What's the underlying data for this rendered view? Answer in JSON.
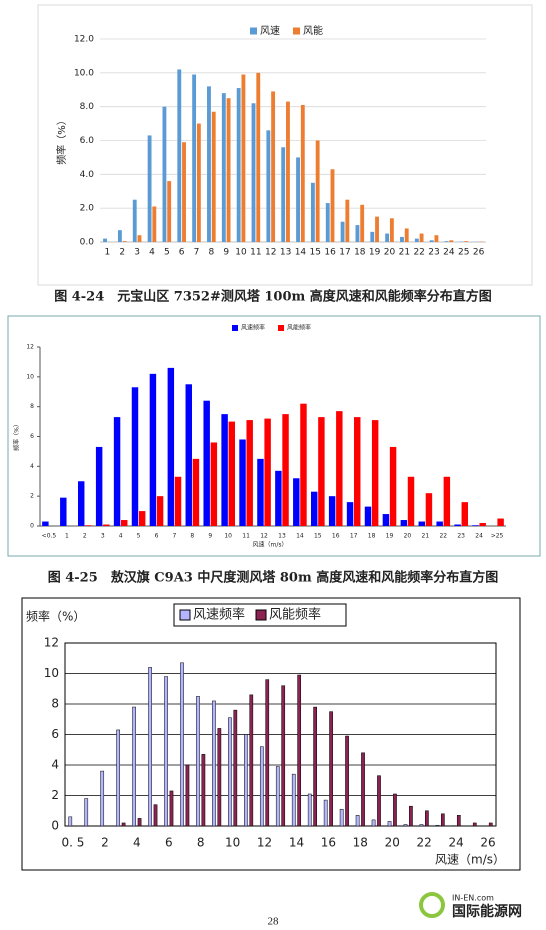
{
  "chart_data": [
    {
      "type": "bar",
      "caption": "图 4-24　元宝山区 7352#测风塔 100m 高度风速和风能频率分布直方图",
      "y_label": "频率（%）",
      "grid": true,
      "categories": [
        "1",
        "2",
        "3",
        "4",
        "5",
        "6",
        "7",
        "8",
        "9",
        "10",
        "11",
        "12",
        "13",
        "14",
        "15",
        "16",
        "17",
        "18",
        "19",
        "20",
        "21",
        "22",
        "23",
        "24",
        "25",
        "26"
      ],
      "series": [
        {
          "name": "风速",
          "color": "#5b9bd5",
          "values": [
            0.2,
            0.7,
            2.5,
            6.3,
            8.0,
            10.2,
            9.9,
            9.2,
            8.8,
            9.1,
            8.2,
            6.6,
            5.6,
            5.0,
            3.5,
            2.3,
            1.2,
            1.0,
            0.6,
            0.5,
            0.3,
            0.2,
            0.1,
            0.05,
            0.02,
            0.01
          ]
        },
        {
          "name": "风能",
          "color": "#ed7d31",
          "values": [
            0,
            0.05,
            0.4,
            2.1,
            3.6,
            5.9,
            7.0,
            7.7,
            8.5,
            9.9,
            10.0,
            8.9,
            8.3,
            8.1,
            6.0,
            4.3,
            2.5,
            2.2,
            1.5,
            1.4,
            0.8,
            0.5,
            0.4,
            0.1,
            0.05,
            0.02
          ]
        }
      ],
      "ylim": [
        0,
        12
      ],
      "yticks": [
        {
          "value": 0,
          "label": "0.0"
        },
        {
          "value": 2,
          "label": "2.0"
        },
        {
          "value": 4,
          "label": "4.0"
        },
        {
          "value": 6,
          "label": "6.0"
        },
        {
          "value": 8,
          "label": "8.0"
        },
        {
          "value": 10,
          "label": "10.0"
        },
        {
          "value": 12,
          "label": "12.0"
        }
      ]
    },
    {
      "type": "bar",
      "caption": "图 4-25　敖汉旗 C9A3 中尺度测风塔 80m 高度风速和风能频率分布直方图",
      "y_label": "频率（%）",
      "x_label": "风速（m/s）",
      "grid": false,
      "categories": [
        "<0.5",
        "1",
        "2",
        "3",
        "4",
        "5",
        "6",
        "7",
        "8",
        "9",
        "10",
        "11",
        "12",
        "13",
        "14",
        "15",
        "16",
        "17",
        "18",
        "19",
        "20",
        "21",
        "22",
        "23",
        "24",
        ">25"
      ],
      "series": [
        {
          "name": "风速频率",
          "color": "#0000ff",
          "values": [
            0.3,
            1.9,
            3.0,
            5.3,
            7.3,
            9.3,
            10.2,
            10.6,
            9.5,
            8.4,
            7.5,
            5.8,
            4.5,
            3.7,
            3.2,
            2.3,
            2.0,
            1.6,
            1.3,
            0.8,
            0.4,
            0.3,
            0.3,
            0.1,
            0.05,
            0
          ]
        },
        {
          "name": "风能频率",
          "color": "#ff0000",
          "values": [
            0,
            0,
            0.05,
            0.1,
            0.4,
            1.0,
            2.0,
            3.3,
            4.5,
            5.6,
            7.0,
            7.1,
            7.2,
            7.5,
            8.2,
            7.3,
            7.7,
            7.3,
            7.1,
            5.3,
            3.3,
            2.2,
            3.3,
            1.6,
            0.2,
            0.5
          ]
        }
      ],
      "ylim": [
        0,
        12
      ],
      "yticks": [
        0,
        2,
        4,
        6,
        8,
        10,
        12
      ]
    },
    {
      "type": "bar",
      "y_label": "频率（%）",
      "x_label": "风速（m/s）",
      "grid": true,
      "categories": [
        "0. 5",
        null,
        "2",
        null,
        "4",
        null,
        "6",
        null,
        "8",
        null,
        "10",
        null,
        "12",
        null,
        "14",
        null,
        "16",
        null,
        "18",
        null,
        "20",
        null,
        "22",
        null,
        "24",
        null,
        "26"
      ],
      "series": [
        {
          "name": "风速频率",
          "color": "#b4b4ff",
          "values": [
            0.6,
            1.8,
            3.6,
            6.3,
            7.8,
            10.4,
            9.8,
            10.7,
            8.5,
            8.2,
            7.1,
            6.0,
            5.2,
            3.9,
            3.4,
            2.1,
            1.7,
            1.1,
            0.7,
            0.4,
            0.3,
            0.1,
            0.1,
            0.05,
            0.02,
            0.01,
            0.01
          ]
        },
        {
          "name": "风能频率",
          "color": "#8b2252",
          "values": [
            0,
            0,
            0,
            0.2,
            0.5,
            1.4,
            2.3,
            4.0,
            4.7,
            6.4,
            7.6,
            8.6,
            9.6,
            9.2,
            9.9,
            7.8,
            7.5,
            5.9,
            4.8,
            3.3,
            2.1,
            1.3,
            1.0,
            0.8,
            0.7,
            0.2,
            0.2
          ]
        }
      ],
      "ylim": [
        0,
        12
      ],
      "yticks": [
        0,
        2,
        4,
        6,
        8,
        10,
        12
      ]
    }
  ],
  "page_number": "28",
  "watermark": {
    "site": "IN-EN.com",
    "name": "国际能源网"
  }
}
